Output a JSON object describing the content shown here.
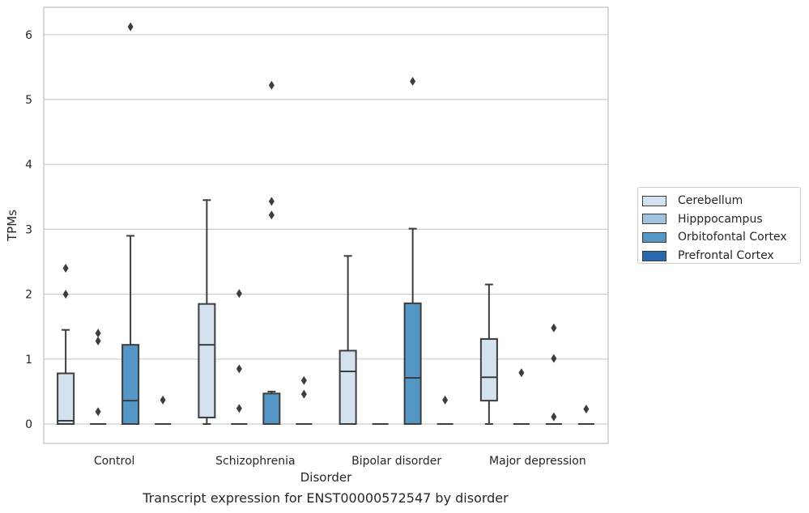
{
  "chart_data": {
    "type": "box",
    "title": "Transcript expression for ENST00000572547 by disorder",
    "xlabel": "Disorder",
    "ylabel": "TPMs",
    "ylim": [
      -0.3,
      6.4
    ],
    "yticks": [
      0,
      1,
      2,
      3,
      4,
      5,
      6
    ],
    "grid": true,
    "legend_position": "center-right outside",
    "categories": [
      "Control",
      "Schizophrenia",
      "Bipolar disorder",
      "Major depression"
    ],
    "series": [
      {
        "name": "Cerebellum",
        "color": "#d4e1ef",
        "boxes": [
          {
            "whislo": 0,
            "q1": 0,
            "med": 0.05,
            "q3": 0.78,
            "whishi": 1.45,
            "fliers": [
              2.0,
              2.4
            ]
          },
          {
            "whislo": 0,
            "q1": 0.1,
            "med": 1.22,
            "q3": 1.85,
            "whishi": 3.45,
            "fliers": []
          },
          {
            "whislo": 0,
            "q1": 0,
            "med": 0.81,
            "q3": 1.13,
            "whishi": 2.59,
            "fliers": []
          },
          {
            "whislo": 0,
            "q1": 0.36,
            "med": 0.72,
            "q3": 1.31,
            "whishi": 2.15,
            "fliers": []
          }
        ]
      },
      {
        "name": "Hipppocampus",
        "color": "#a1c3dd",
        "boxes": [
          {
            "whislo": 0,
            "q1": 0,
            "med": 0,
            "q3": 0,
            "whishi": 0,
            "fliers": [
              0.19,
              1.28,
              1.4
            ]
          },
          {
            "whislo": 0,
            "q1": 0,
            "med": 0,
            "q3": 0,
            "whishi": 0,
            "fliers": [
              0.24,
              0.85,
              2.01
            ]
          },
          {
            "whislo": 0,
            "q1": 0,
            "med": 0,
            "q3": 0,
            "whishi": 0,
            "fliers": []
          },
          {
            "whislo": 0,
            "q1": 0,
            "med": 0,
            "q3": 0,
            "whishi": 0,
            "fliers": [
              0.79
            ]
          }
        ]
      },
      {
        "name": "Orbitofontal Cortex",
        "color": "#5496c6",
        "boxes": [
          {
            "whislo": 0,
            "q1": 0,
            "med": 0.36,
            "q3": 1.22,
            "whishi": 2.9,
            "fliers": [
              6.12
            ]
          },
          {
            "whislo": 0,
            "q1": 0,
            "med": 0,
            "q3": 0.47,
            "whishi": 0.5,
            "fliers": [
              3.22,
              3.43,
              5.22
            ]
          },
          {
            "whislo": 0,
            "q1": 0,
            "med": 0.71,
            "q3": 1.86,
            "whishi": 3.01,
            "fliers": [
              5.28
            ]
          },
          {
            "whislo": 0,
            "q1": 0,
            "med": 0,
            "q3": 0,
            "whishi": 0,
            "fliers": [
              0.11,
              1.01,
              1.48
            ]
          }
        ]
      },
      {
        "name": "Prefrontal Cortex",
        "color": "#2a6aac",
        "boxes": [
          {
            "whislo": 0,
            "q1": 0,
            "med": 0,
            "q3": 0,
            "whishi": 0,
            "fliers": [
              0.37
            ]
          },
          {
            "whislo": 0,
            "q1": 0,
            "med": 0,
            "q3": 0,
            "whishi": 0,
            "fliers": [
              0.46,
              0.67
            ]
          },
          {
            "whislo": 0,
            "q1": 0,
            "med": 0,
            "q3": 0,
            "whishi": 0,
            "fliers": [
              0.37
            ]
          },
          {
            "whislo": 0,
            "q1": 0,
            "med": 0,
            "q3": 0,
            "whishi": 0,
            "fliers": [
              0.23
            ]
          }
        ]
      }
    ]
  }
}
